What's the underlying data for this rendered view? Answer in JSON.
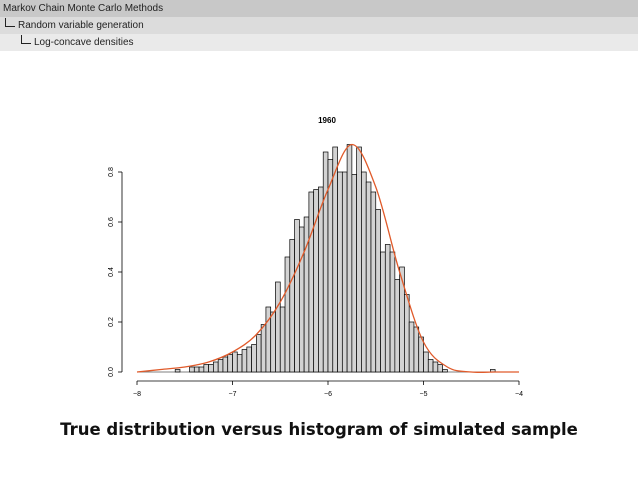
{
  "header": {
    "section": "Markov Chain Monte Carlo Methods",
    "subsection": "Random variable generation",
    "subsubsection": "Log-concave densities"
  },
  "caption": "True distribution versus histogram of simulated sample",
  "colors": {
    "bars_fill": "#d3d3d3",
    "bars_stroke": "#000000",
    "density_curve": "#e05a2a",
    "header_bg": "#c8c8c8"
  },
  "chart_data": {
    "type": "bar",
    "title": "1960",
    "xlabel": "",
    "ylabel": "",
    "xlim": [
      -8,
      -4
    ],
    "ylim": [
      0,
      0.9
    ],
    "xticks": [
      -8,
      -7,
      -6,
      -5,
      -4
    ],
    "yticks": [
      0.0,
      0.2,
      0.4,
      0.6,
      0.8
    ],
    "ytick_labels": [
      "0.0",
      "0.2",
      "0.4",
      "0.6",
      "0.8"
    ],
    "bin_width": 0.05,
    "bins_start": [
      -7.6,
      -7.55,
      -7.5,
      -7.45,
      -7.4,
      -7.35,
      -7.3,
      -7.25,
      -7.2,
      -7.15,
      -7.1,
      -7.05,
      -7.0,
      -6.95,
      -6.9,
      -6.85,
      -6.8,
      -6.75,
      -6.7,
      -6.65,
      -6.6,
      -6.55,
      -6.5,
      -6.45,
      -6.4,
      -6.35,
      -6.3,
      -6.25,
      -6.2,
      -6.15,
      -6.1,
      -6.05,
      -6.0,
      -5.95,
      -5.9,
      -5.85,
      -5.8,
      -5.75,
      -5.7,
      -5.65,
      -5.6,
      -5.55,
      -5.5,
      -5.45,
      -5.4,
      -5.35,
      -5.3,
      -5.25,
      -5.2,
      -5.15,
      -5.1,
      -5.05,
      -5.0,
      -4.95,
      -4.9,
      -4.85,
      -4.8,
      -4.75,
      -4.7,
      -4.65,
      -4.6,
      -4.55,
      -4.5,
      -4.45,
      -4.4,
      -4.35,
      -4.3
    ],
    "histogram": [
      0.01,
      0.0,
      0.0,
      0.02,
      0.02,
      0.02,
      0.03,
      0.03,
      0.04,
      0.05,
      0.06,
      0.07,
      0.08,
      0.07,
      0.09,
      0.1,
      0.11,
      0.15,
      0.19,
      0.26,
      0.24,
      0.36,
      0.26,
      0.46,
      0.53,
      0.61,
      0.58,
      0.62,
      0.72,
      0.73,
      0.74,
      0.88,
      0.85,
      0.9,
      0.8,
      0.8,
      0.91,
      0.79,
      0.9,
      0.8,
      0.76,
      0.72,
      0.65,
      0.48,
      0.51,
      0.48,
      0.37,
      0.42,
      0.31,
      0.2,
      0.18,
      0.14,
      0.08,
      0.05,
      0.04,
      0.03,
      0.01,
      0.0,
      0.0,
      0.0,
      0.0,
      0.0,
      0.0,
      0.0,
      0.0,
      0.0,
      0.01
    ],
    "density_curve": {
      "x": [
        -8.0,
        -7.75,
        -7.5,
        -7.25,
        -7.0,
        -6.75,
        -6.5,
        -6.25,
        -6.0,
        -5.75,
        -5.5,
        -5.25,
        -5.0,
        -4.75,
        -4.5,
        -4.25,
        -4.0
      ],
      "y": [
        0.0,
        0.01,
        0.02,
        0.04,
        0.08,
        0.15,
        0.28,
        0.48,
        0.73,
        0.91,
        0.74,
        0.4,
        0.12,
        0.02,
        0.0,
        0.0,
        0.0
      ]
    }
  }
}
